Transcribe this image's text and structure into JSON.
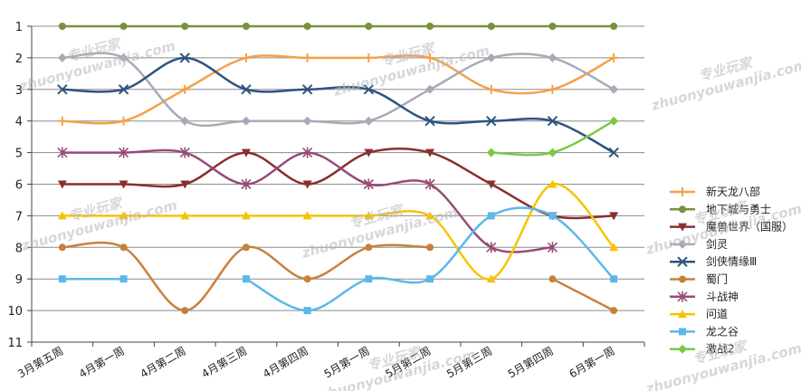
{
  "chart_data": {
    "type": "line",
    "categories": [
      "3月第五周",
      "4月第一周",
      "4月第二周",
      "4月第三周",
      "4月第四周",
      "5月第一周",
      "5月第二周",
      "5月第三周",
      "5月第四周",
      "6月第一周"
    ],
    "y_ticks": [
      "1",
      "2",
      "3",
      "4",
      "5",
      "6",
      "7",
      "8",
      "9",
      "10",
      "11"
    ],
    "ylim": [
      1,
      11
    ],
    "y_inverted": true,
    "grid": true,
    "legend_position": "right",
    "series": [
      {
        "name": "新天龙八部",
        "color": "#f5a14a",
        "marker": "plus",
        "values": [
          4,
          4,
          3,
          2,
          2,
          2,
          2,
          3,
          3,
          2
        ]
      },
      {
        "name": "地下城与勇士",
        "color": "#77933c",
        "marker": "circle",
        "values": [
          1,
          1,
          1,
          1,
          1,
          1,
          1,
          1,
          1,
          1
        ]
      },
      {
        "name": "魔兽世界（国服）",
        "color": "#8b2e2e",
        "marker": "triangle-down",
        "values": [
          6,
          6,
          6,
          5,
          6,
          5,
          5,
          6,
          7,
          7
        ]
      },
      {
        "name": "剑灵",
        "color": "#a5acb8",
        "marker": "diamond",
        "values": [
          2,
          2,
          4,
          4,
          4,
          4,
          3,
          2,
          2,
          3
        ]
      },
      {
        "name": "剑侠情缘Ⅲ",
        "color": "#2f5380",
        "marker": "x",
        "values": [
          3,
          3,
          2,
          3,
          3,
          3,
          4,
          4,
          4,
          5
        ]
      },
      {
        "name": "蜀门",
        "color": "#c8803e",
        "marker": "circle",
        "values": [
          8,
          8,
          10,
          8,
          9,
          8,
          8,
          null,
          9,
          10
        ]
      },
      {
        "name": "斗战神",
        "color": "#974b77",
        "marker": "star",
        "values": [
          5,
          5,
          5,
          6,
          5,
          6,
          6,
          8,
          8,
          null
        ]
      },
      {
        "name": "问道",
        "color": "#f7c300",
        "marker": "triangle-up",
        "values": [
          7,
          7,
          7,
          7,
          7,
          7,
          7,
          9,
          6,
          8
        ]
      },
      {
        "name": "龙之谷",
        "color": "#5bb8e8",
        "marker": "square",
        "values": [
          9,
          9,
          null,
          9,
          10,
          9,
          9,
          7,
          7,
          9
        ]
      },
      {
        "name": "激战2",
        "color": "#7ac943",
        "marker": "diamond",
        "values": [
          null,
          null,
          null,
          null,
          null,
          null,
          null,
          5,
          5,
          4
        ]
      }
    ]
  },
  "watermark": {
    "cn_text": "专业玩家",
    "en_text": "zhuonyouwanjia.com"
  }
}
